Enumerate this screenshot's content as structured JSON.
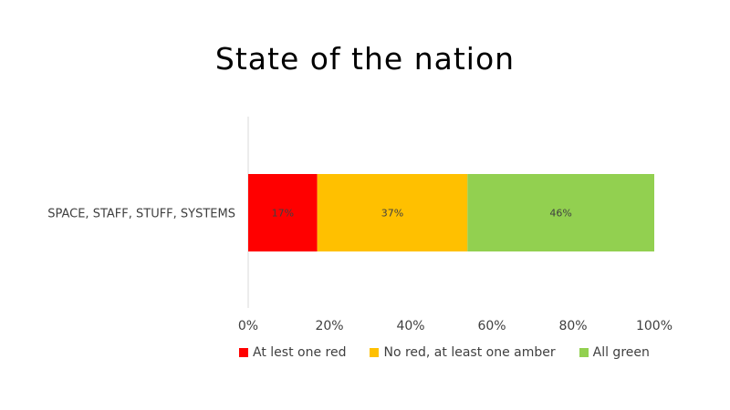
{
  "chart_data": {
    "type": "bar",
    "orientation": "horizontal",
    "stacked": true,
    "title": "State of the nation",
    "categories": [
      "SPACE, STAFF, STUFF, SYSTEMS"
    ],
    "series": [
      {
        "name": "At lest one red",
        "values": [
          0.17
        ],
        "label": "17%",
        "color": "#ff0000"
      },
      {
        "name": "No red, at least one amber",
        "values": [
          0.37
        ],
        "label": "37%",
        "color": "#ffc000"
      },
      {
        "name": "All green",
        "values": [
          0.46
        ],
        "label": "46%",
        "color": "#92d050"
      }
    ],
    "xlim": [
      0,
      1
    ],
    "x_ticks": [
      "0%",
      "20%",
      "40%",
      "60%",
      "80%",
      "100%"
    ],
    "grid": false,
    "legend_position": "bottom"
  }
}
